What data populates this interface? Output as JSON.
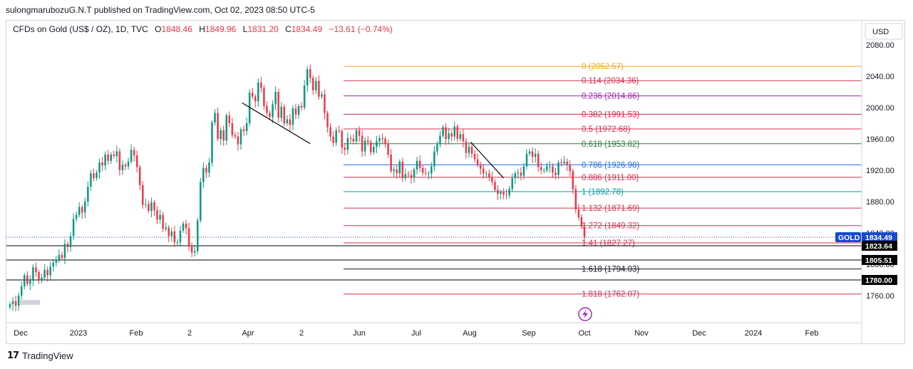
{
  "header": {
    "publish_line": "sulongmarubozuG.N.T published on TradingView.com, Oct 02, 2023 08:50 UTC-5"
  },
  "legend": {
    "symbol": "CFDs on Gold (US$ / OZ), 1D, TVC",
    "open_label": "O",
    "open": "1848.46",
    "high_label": "H",
    "high": "1849.96",
    "low_label": "L",
    "low": "1831.20",
    "close_label": "C",
    "close": "1834.49",
    "change": "−13.61 (−0.74%)"
  },
  "footer": {
    "brand": "TradingView"
  },
  "chart_data": {
    "type": "candlestick",
    "currency_button": "USD",
    "y_ticks": [
      "2080.00",
      "2040.00",
      "2000.00",
      "1960.00",
      "1920.00",
      "1880.00",
      "1840.00",
      "1800.00",
      "1760.00"
    ],
    "x_ticks": [
      "Dec",
      "2023",
      "Feb",
      "2",
      "Apr",
      "2",
      "Jun",
      "Jul",
      "Aug",
      "Sep",
      "Oct",
      "Nov",
      "Dec",
      "2024",
      "Feb"
    ],
    "price_tags": [
      {
        "label": "GOLD",
        "value": "1834.49",
        "color": "#1848cc"
      },
      {
        "value": "1823.64",
        "color": "#000000"
      },
      {
        "value": "1805.51",
        "color": "#000000"
      },
      {
        "value": "1780.00",
        "color": "#000000"
      }
    ],
    "horizontal_lines": [
      1823.64,
      1805.51,
      1780.0
    ],
    "current_price": 1834.49,
    "fib_levels": [
      {
        "label": "0 (2052.57)",
        "value": 2052.57,
        "color": "#f5a623"
      },
      {
        "label": "0.114 (2034.36)",
        "value": 2034.36,
        "color": "#d4324e"
      },
      {
        "label": "0.236 (2014.86)",
        "value": 2014.86,
        "color": "#9c27b0"
      },
      {
        "label": "0.382 (1991.53)",
        "value": 1991.53,
        "color": "#c62f48"
      },
      {
        "label": "0.5 (1972.68)",
        "value": 1972.68,
        "color": "#d4324e"
      },
      {
        "label": "0.618 (1953.82)",
        "value": 1953.82,
        "color": "#2e7d32"
      },
      {
        "label": "0.786 (1926.98)",
        "value": 1926.98,
        "color": "#1e6fd9"
      },
      {
        "label": "0.886 (1911.00)",
        "value": 1911.0,
        "color": "#d4324e"
      },
      {
        "label": "1 (1892.78)",
        "value": 1892.78,
        "color": "#0a9aa6"
      },
      {
        "label": "1.132 (1871.69)",
        "value": 1871.69,
        "color": "#d4324e"
      },
      {
        "label": "1.272 (1849.32)",
        "value": 1849.32,
        "color": "#d4324e"
      },
      {
        "label": "1.41 (1827.27)",
        "value": 1827.27,
        "color": "#d4324e"
      },
      {
        "label": "1.618 (1794.03)",
        "value": 1794.03,
        "color": "#131722"
      },
      {
        "label": "1.818 (1762.07)",
        "value": 1762.07,
        "color": "#d4324e"
      }
    ],
    "trendlines": [
      {
        "start": [
          0.402,
          2006
        ],
        "end": [
          0.52,
          1954
        ]
      },
      {
        "start": [
          0.798,
          1956
        ],
        "end": [
          0.855,
          1910
        ]
      }
    ],
    "up_color": "#089981",
    "down_color": "#f23645",
    "series_closes": [
      1749,
      1753,
      1747,
      1760,
      1772,
      1786,
      1775,
      1779,
      1796,
      1790,
      1780,
      1783,
      1793,
      1786,
      1797,
      1802,
      1806,
      1812,
      1808,
      1826,
      1822,
      1836,
      1858,
      1863,
      1873,
      1866,
      1880,
      1899,
      1916,
      1910,
      1917,
      1930,
      1926,
      1940,
      1932,
      1940,
      1938,
      1944,
      1920,
      1927,
      1925,
      1931,
      1946,
      1939,
      1924,
      1901,
      1876,
      1877,
      1868,
      1879,
      1869,
      1857,
      1863,
      1845,
      1847,
      1836,
      1842,
      1828,
      1828,
      1843,
      1852,
      1846,
      1824,
      1815,
      1817,
      1856,
      1905,
      1923,
      1917,
      1930,
      1981,
      1993,
      1960,
      1971,
      1958,
      1990,
      1980,
      1965,
      1963,
      1953,
      1972,
      1970,
      1980,
      2019,
      2014,
      2008,
      2032,
      2025,
      2002,
      1993,
      1988,
      2004,
      2020,
      1987,
      2001,
      1980,
      1985,
      1978,
      1999,
      1991,
      2002,
      2000,
      2028,
      2049,
      2038,
      2022,
      2034,
      2014,
      2017,
      1993,
      1975,
      1963,
      1955,
      1971,
      1970,
      1949,
      1946,
      1961,
      1960,
      1957,
      1971,
      1964,
      1944,
      1958,
      1956,
      1943,
      1950,
      1957,
      1961,
      1960,
      1954,
      1940,
      1919,
      1921,
      1916,
      1931,
      1910,
      1915,
      1914,
      1911,
      1921,
      1932,
      1923,
      1917,
      1916,
      1916,
      1925,
      1944,
      1953,
      1964,
      1975,
      1960,
      1967,
      1963,
      1976,
      1960,
      1966,
      1957,
      1942,
      1950,
      1941,
      1934,
      1927,
      1922,
      1916,
      1916,
      1911,
      1905,
      1895,
      1890,
      1892,
      1889,
      1888,
      1896,
      1910,
      1916,
      1917,
      1913,
      1925,
      1941,
      1944,
      1937,
      1941,
      1924,
      1920,
      1920,
      1925,
      1925,
      1917,
      1914,
      1930,
      1929,
      1931,
      1927,
      1919,
      1896,
      1870,
      1860,
      1848,
      1834
    ]
  }
}
